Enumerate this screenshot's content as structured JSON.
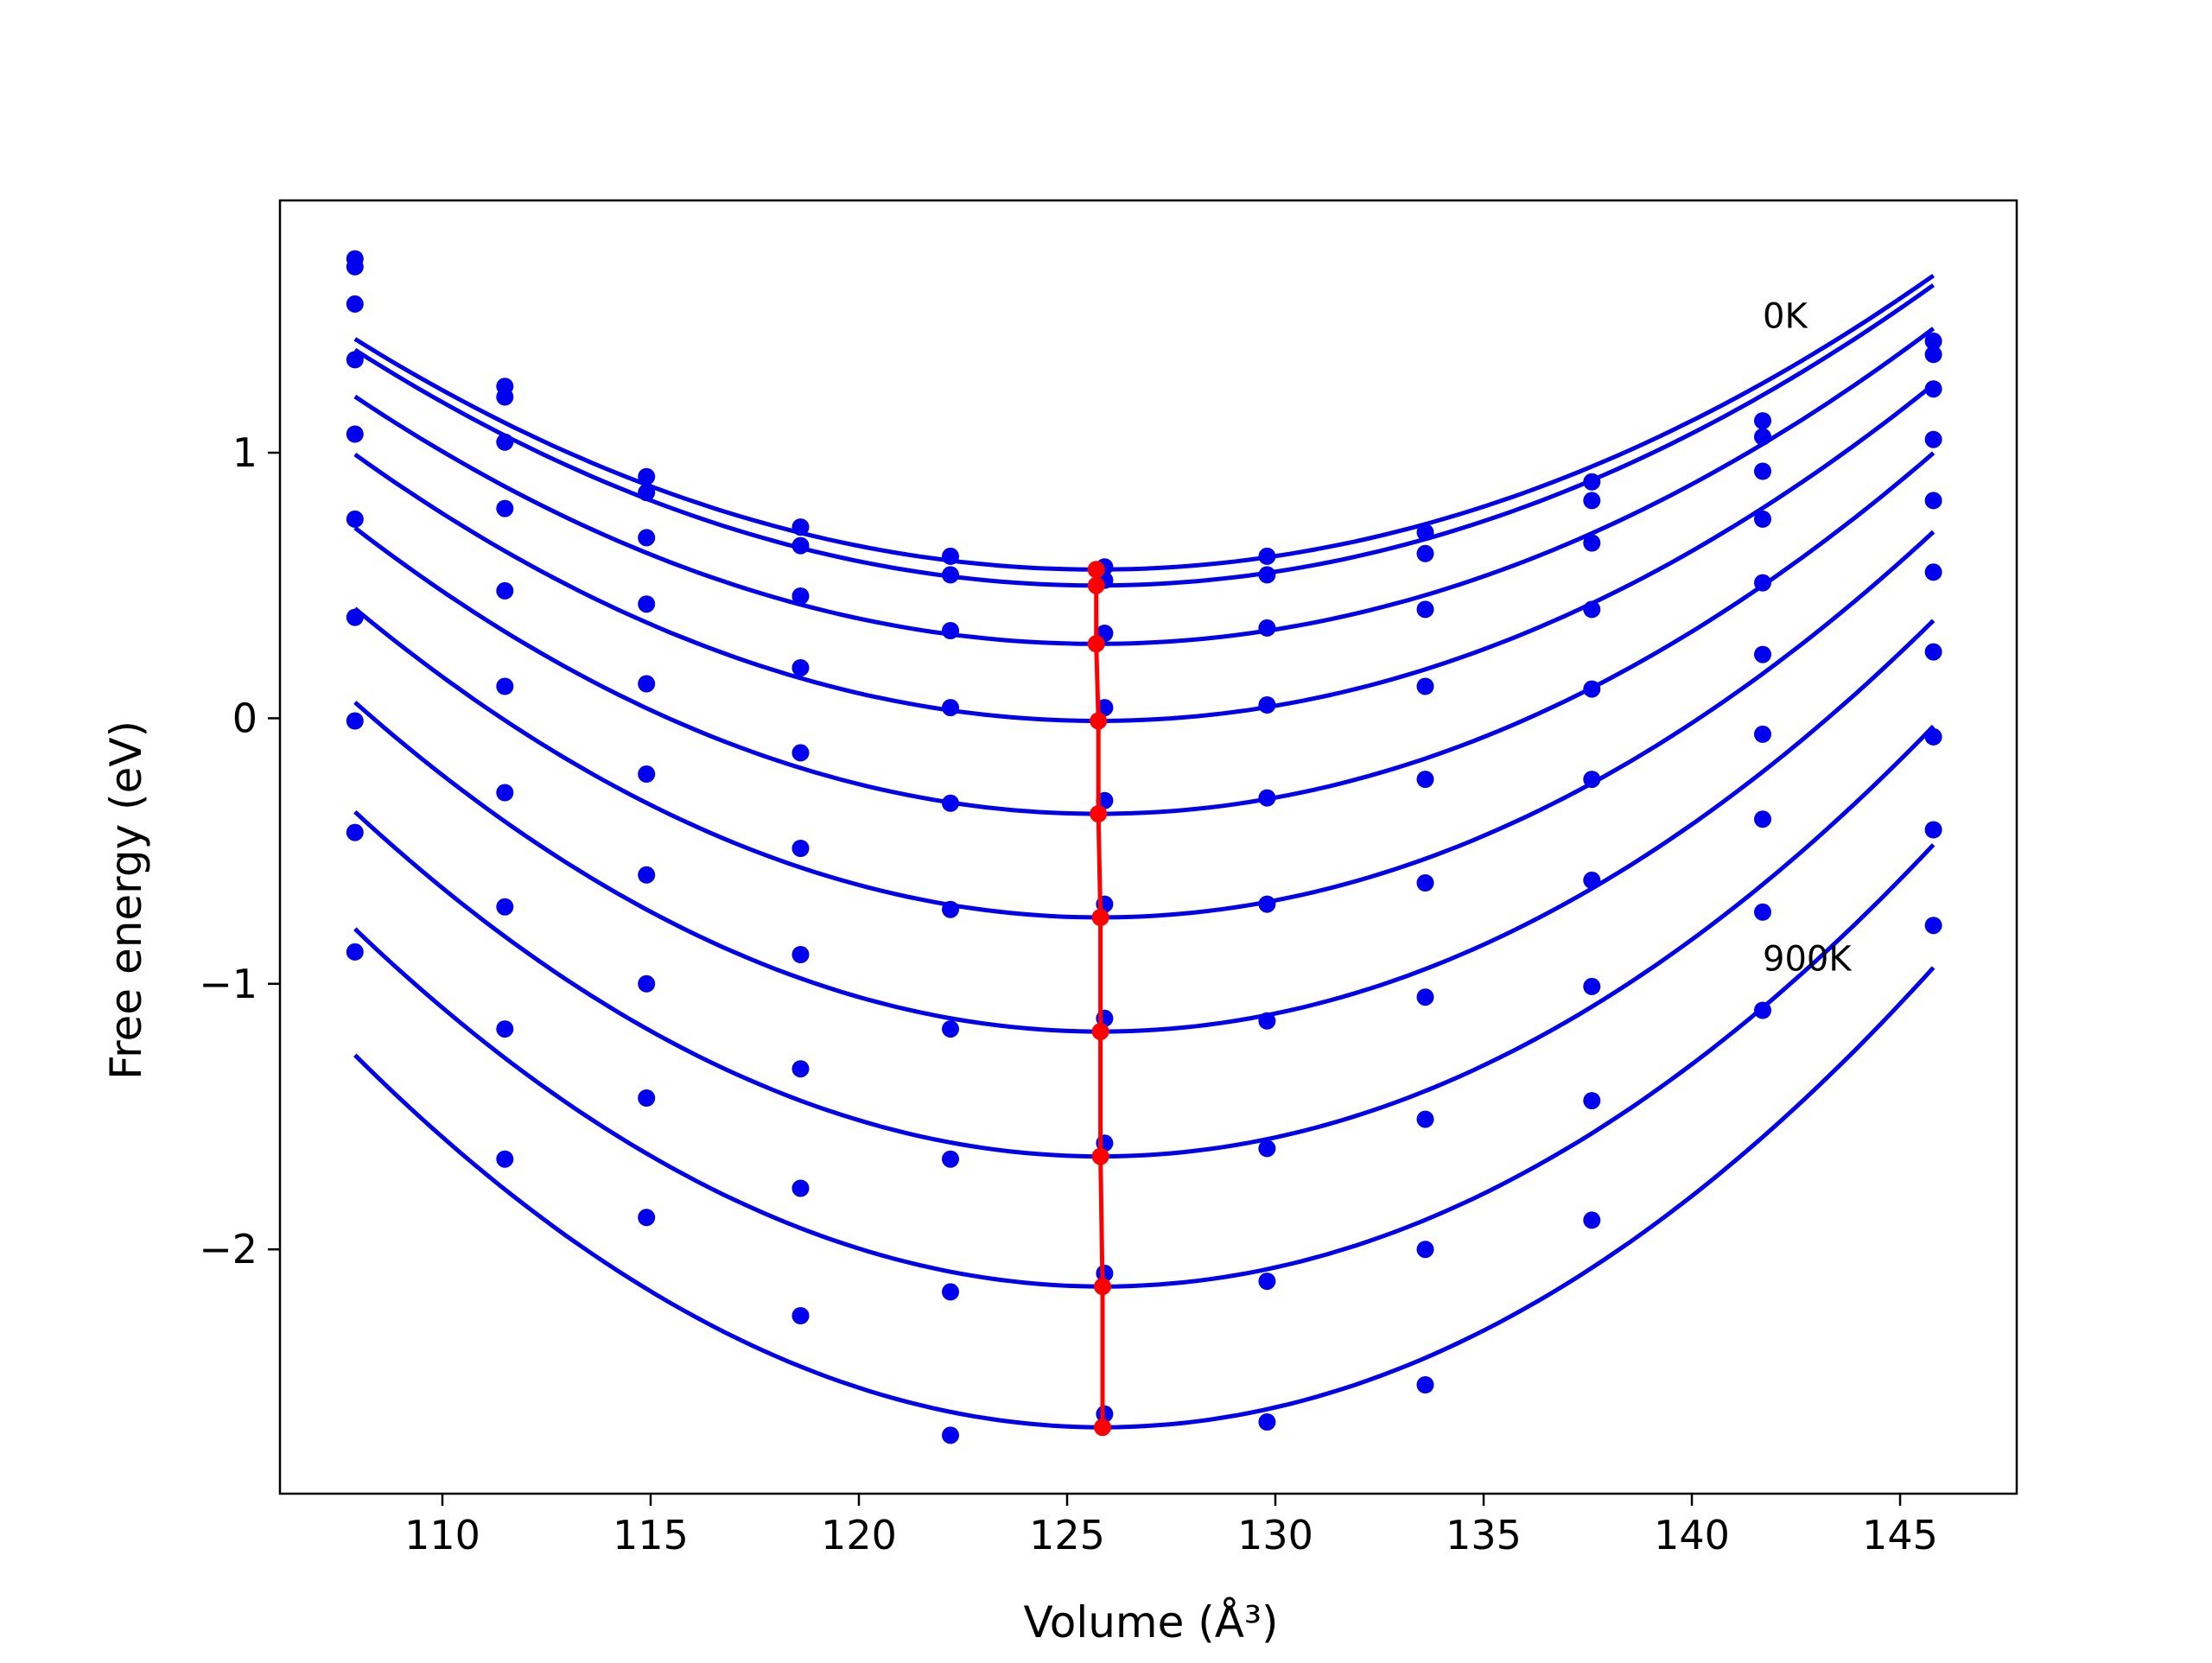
{
  "chart_data": {
    "type": "line",
    "title": "",
    "xlabel": "Volume (Å³)",
    "ylabel": "Free energy (eV)",
    "xlim": [
      106.1,
      147.8
    ],
    "ylim": [
      -2.92,
      1.95
    ],
    "xticks": [
      110,
      115,
      120,
      125,
      130,
      135,
      140,
      145
    ],
    "yticks": [
      -2,
      -1,
      0,
      1
    ],
    "grid": false,
    "legend": "none",
    "volumes": [
      107.9,
      111.5,
      114.9,
      118.6,
      122.2,
      125.9,
      129.8,
      133.6,
      137.6,
      141.7,
      145.8
    ],
    "series": [
      {
        "label": "0K",
        "points": [
          1.73,
          1.25,
          0.91,
          0.72,
          0.61,
          0.57,
          0.61,
          0.7,
          0.89,
          1.12,
          1.42
        ],
        "fit": {
          "vmin": 125.7,
          "emin": 0.56,
          "curv": 0.00274
        }
      },
      {
        "label": "",
        "points": [
          1.7,
          1.21,
          0.85,
          0.65,
          0.54,
          0.52,
          0.54,
          0.62,
          0.82,
          1.06,
          1.37
        ],
        "fit": {
          "vmin": 125.7,
          "emin": 0.5,
          "curv": 0.0028
        }
      },
      {
        "label": "",
        "points": [
          1.56,
          1.04,
          0.68,
          0.46,
          0.33,
          0.32,
          0.34,
          0.41,
          0.66,
          0.93,
          1.24
        ],
        "fit": {
          "vmin": 125.7,
          "emin": 0.28,
          "curv": 0.00294
        }
      },
      {
        "label": "",
        "points": [
          1.35,
          0.79,
          0.43,
          0.19,
          0.04,
          0.04,
          0.05,
          0.12,
          0.41,
          0.75,
          1.05
        ],
        "fit": {
          "vmin": 125.75,
          "emin": -0.01,
          "curv": 0.00315
        }
      },
      {
        "label": "",
        "points": [
          1.07,
          0.48,
          0.13,
          -0.13,
          -0.32,
          -0.31,
          -0.3,
          -0.23,
          0.11,
          0.51,
          0.82
        ],
        "fit": {
          "vmin": 125.75,
          "emin": -0.36,
          "curv": 0.00338
        }
      },
      {
        "label": "",
        "points": [
          0.75,
          0.12,
          -0.21,
          -0.49,
          -0.72,
          -0.7,
          -0.7,
          -0.62,
          -0.23,
          0.24,
          0.55
        ],
        "fit": {
          "vmin": 125.8,
          "emin": -0.75,
          "curv": 0.00363
        }
      },
      {
        "label": "",
        "points": [
          0.38,
          -0.28,
          -0.59,
          -0.89,
          -1.17,
          -1.13,
          -1.14,
          -1.05,
          -0.61,
          -0.06,
          0.25
        ],
        "fit": {
          "vmin": 125.8,
          "emin": -1.18,
          "curv": 0.00387
        }
      },
      {
        "label": "",
        "points": [
          -0.01,
          -0.71,
          -1.0,
          -1.32,
          -1.66,
          -1.6,
          -1.62,
          -1.51,
          -1.01,
          -0.38,
          -0.07
        ],
        "fit": {
          "vmin": 125.8,
          "emin": -1.65,
          "curv": 0.00405
        }
      },
      {
        "label": "",
        "points": [
          -0.43,
          -1.17,
          -1.43,
          -1.77,
          -2.16,
          -2.09,
          -2.12,
          -2.0,
          -1.44,
          -0.73,
          -0.42
        ],
        "fit": {
          "vmin": 125.85,
          "emin": -2.14,
          "curv": 0.00418
        }
      },
      {
        "label": "900K",
        "points": [
          -0.88,
          -1.66,
          -1.88,
          -2.25,
          -2.7,
          -2.62,
          -2.65,
          -2.51,
          -1.89,
          -1.1,
          -0.78
        ],
        "fit": {
          "vmin": 125.85,
          "emin": -2.67,
          "curv": 0.00435
        }
      }
    ],
    "minima": [
      [
        125.7,
        0.56
      ],
      [
        125.7,
        0.5
      ],
      [
        125.7,
        0.28
      ],
      [
        125.75,
        -0.01
      ],
      [
        125.75,
        -0.36
      ],
      [
        125.8,
        -0.75
      ],
      [
        125.8,
        -1.18
      ],
      [
        125.8,
        -1.65
      ],
      [
        125.85,
        -2.14
      ],
      [
        125.85,
        -2.67
      ]
    ],
    "annotations": [
      {
        "text": "0K",
        "x": 141.7,
        "y": 1.47
      },
      {
        "text": "900K",
        "x": 141.7,
        "y": -0.95
      }
    ],
    "colors": {
      "fit": "#0000ee",
      "points": "#0000ee",
      "minima": "#ff0000"
    }
  }
}
